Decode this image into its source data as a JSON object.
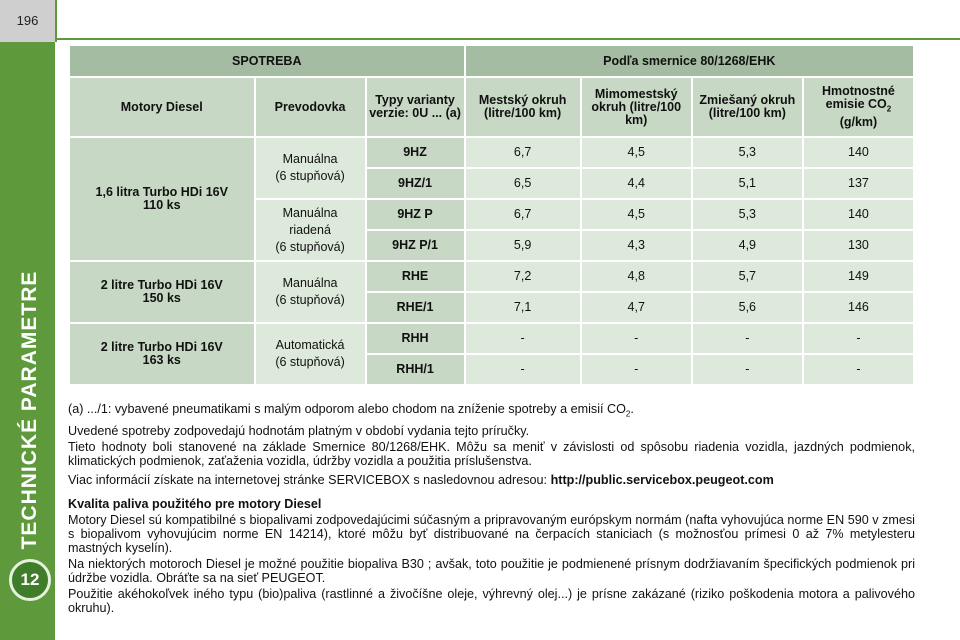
{
  "page_number": "196",
  "chapter_title": "TECHNICKÉ PARAMETRE",
  "chapter_number": "12",
  "table": {
    "header_left": "SPOTREBA",
    "header_right": "Podľa smernice 80/1268/EHK",
    "columns": {
      "engine": "Motory Diesel",
      "gearbox": "Prevodovka",
      "variant": "Typy varianty verzie: 0U ... (a)",
      "urban": "Mestský okruh (litre/100 km)",
      "extra_urban": "Mimomestský okruh (litre/100 km)",
      "combined": "Zmiešaný okruh (litre/100 km)",
      "co2_prefix": "Hmotnostné emisie CO",
      "co2_sub": "2",
      "co2_unit": "(g/km)"
    },
    "engines": [
      {
        "name": "1,6 litra Turbo HDi 16V",
        "power": "110 ks"
      },
      {
        "name": "2 litre Turbo HDi 16V",
        "power": "150 ks"
      },
      {
        "name": "2 litre Turbo HDi 16V",
        "power": "163 ks"
      }
    ],
    "gearboxes": [
      [
        "Manuálna",
        "(6 stupňová)"
      ],
      [
        "Manuálna",
        "riadená",
        "(6 stupňová)"
      ],
      [
        "Manuálna",
        "(6 stupňová)"
      ],
      [
        "Automatická",
        "(6 stupňová)"
      ]
    ],
    "rows": [
      {
        "variant": "9HZ",
        "urban": "6,7",
        "extra_urban": "4,5",
        "combined": "5,3",
        "co2": "140"
      },
      {
        "variant": "9HZ/1",
        "urban": "6,5",
        "extra_urban": "4,4",
        "combined": "5,1",
        "co2": "137"
      },
      {
        "variant": "9HZ P",
        "urban": "6,7",
        "extra_urban": "4,5",
        "combined": "5,3",
        "co2": "140"
      },
      {
        "variant": "9HZ P/1",
        "urban": "5,9",
        "extra_urban": "4,3",
        "combined": "4,9",
        "co2": "130"
      },
      {
        "variant": "RHE",
        "urban": "7,2",
        "extra_urban": "4,8",
        "combined": "5,7",
        "co2": "149"
      },
      {
        "variant": "RHE/1",
        "urban": "7,1",
        "extra_urban": "4,7",
        "combined": "5,6",
        "co2": "146"
      },
      {
        "variant": "RHH",
        "urban": "-",
        "extra_urban": "-",
        "combined": "-",
        "co2": "-"
      },
      {
        "variant": "RHH/1",
        "urban": "-",
        "extra_urban": "-",
        "combined": "-",
        "co2": "-"
      }
    ]
  },
  "notes": {
    "footnote_a": "(a) .../1: vybavené pneumatikami s malým odporom alebo chodom na zníženie spotreby a emisií CO",
    "footnote_a_sub": "2",
    "footnote_a_end": ".",
    "consumption_note": "Uvedené spotreby zodpovedajú hodnotám platným v období vydania tejto príručky.",
    "values_note": "Tieto hodnoty boli stanovené na základe Smernice 80/1268/EHK. Môžu sa meniť v závislosti od spôsobu riadenia vozidla, jazdných podmienok, klimatických podmienok, zaťaženia vozidla, údržby vozidla a použitia príslušenstva.",
    "servicebox_text": "Viac informácií získate na internetovej stránke SERVICEBOX s nasledovnou adresou: ",
    "servicebox_url": "http://public.servicebox.peugeot.com",
    "fuel_heading": "Kvalita paliva použitého pre motory Diesel",
    "fuel_p1": "Motory Diesel sú kompatibilné s biopalivami zodpovedajúcimi súčasným a pripravovaným európskym normám (nafta vyhovujúca norme EN 590 v zmesi s biopalivom vyhovujúcim norme EN 14214), ktoré môžu byť distribuované na čerpacích staniciach (s možnosťou prímesi 0 až 7% metylesteru mastných kyselín).",
    "fuel_p2": "Na niektorých motoroch Diesel je možné použitie biopaliva B30 ; avšak, toto použitie je podmienené prísnym dodržiavaním špecifických podmienok pri údržbe vozidla. Obráťte sa na sieť PEUGEOT.",
    "fuel_p3": "Použitie akéhokoľvek iného typu (bio)paliva (rastlinné a živočíšne oleje, výhrevný olej...) je prísne zakázané (riziko poškodenia motora a palivového okruhu)."
  }
}
